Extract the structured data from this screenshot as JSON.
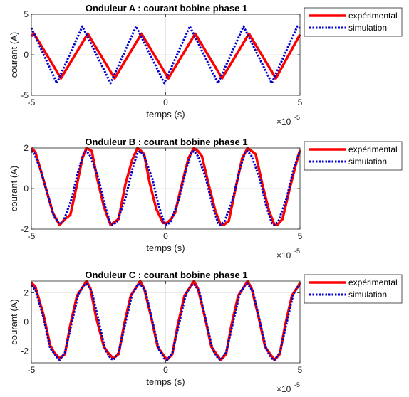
{
  "colors": {
    "experimental": "#ff0000",
    "simulation": "#0000cc",
    "grid": "#dedede",
    "axes": "#262626"
  },
  "chart_data": [
    {
      "type": "line",
      "title": "Onduleur A : courant bobine phase 1",
      "xlabel": "temps (s)",
      "ylabel": "courant (A)",
      "xlim": [
        -5,
        5
      ],
      "ylim": [
        -5,
        5
      ],
      "x_ticks": [
        "-5",
        "0",
        "5"
      ],
      "y_ticks": [
        "5",
        "0",
        "-5"
      ],
      "x_exponent_base": "×10",
      "x_exponent": "-5",
      "grid": true,
      "legend_position": "outside-right",
      "series": [
        {
          "name": "expérimental",
          "style": "solid",
          "x": [
            -5,
            -4.9,
            -3.9,
            -2.9,
            -1.9,
            -0.9,
            0.1,
            1.1,
            2.1,
            3.1,
            4.1,
            5
          ],
          "y": [
            2.3,
            2.6,
            -2.9,
            2.6,
            -2.9,
            2.6,
            -2.9,
            2.6,
            -2.9,
            2.6,
            -2.9,
            2.5
          ]
        },
        {
          "name": "simulation",
          "style": "dotted",
          "x": [
            -5,
            -4.05,
            -3.1,
            -2.05,
            -1.1,
            -0.05,
            0.9,
            1.95,
            2.9,
            3.95,
            4.9,
            5
          ],
          "y": [
            3.3,
            -3.5,
            3.5,
            -3.5,
            3.5,
            -3.5,
            3.5,
            -3.5,
            3.5,
            -3.5,
            3.5,
            3.3
          ]
        }
      ]
    },
    {
      "type": "line",
      "title": "Onduleur B : courant bobine phase 1",
      "xlabel": "temps (s)",
      "ylabel": "courant (A)",
      "xlim": [
        -5,
        5
      ],
      "ylim": [
        -2,
        2
      ],
      "x_ticks": [
        "-5",
        "0",
        "5"
      ],
      "y_ticks": [
        "2",
        "0",
        "-2"
      ],
      "x_exponent_base": "×10",
      "x_exponent": "-5",
      "grid": true,
      "legend_position": "outside-right",
      "series": [
        {
          "name": "expérimental",
          "style": "solid",
          "x": [
            -5,
            -4.85,
            -4.5,
            -4.2,
            -3.95,
            -3.75,
            -3.55,
            -3.3,
            -3.1,
            -2.95,
            -2.75,
            -2.55,
            -2.3,
            -2.05,
            -1.95,
            -1.75,
            -1.5,
            -1.25,
            -1.05,
            -0.95,
            -0.8,
            -0.6,
            -0.35,
            -0.1,
            0.05,
            0.2,
            0.35,
            0.6,
            0.85,
            1.05,
            1.2,
            1.35,
            1.6,
            1.85,
            2.05,
            2.15,
            2.35,
            2.6,
            2.85,
            3.05,
            3.15,
            3.35,
            3.6,
            3.85,
            4.05,
            4.15,
            4.35,
            4.6,
            4.85,
            5
          ],
          "y": [
            2.0,
            1.8,
            0.2,
            -1.2,
            -1.8,
            -1.5,
            -1.3,
            0.2,
            1.5,
            2.0,
            1.85,
            0.5,
            -0.9,
            -1.8,
            -1.7,
            -1.5,
            0.2,
            1.4,
            2.0,
            1.9,
            1.7,
            0.3,
            -1.0,
            -1.7,
            -1.7,
            -1.5,
            -1.2,
            0.2,
            1.5,
            2.0,
            1.85,
            1.6,
            0.2,
            -1.1,
            -1.8,
            -1.8,
            -1.6,
            0.0,
            1.5,
            2.0,
            1.9,
            1.7,
            0.2,
            -1.1,
            -1.8,
            -1.8,
            -1.5,
            -0.1,
            1.2,
            1.9
          ]
        },
        {
          "name": "simulation",
          "style": "dotted",
          "x": [
            -5,
            -4.9,
            -4.65,
            -4.35,
            -4.15,
            -3.95,
            -3.8,
            -3.5,
            -3.25,
            -3.05,
            -2.95,
            -2.8,
            -2.5,
            -2.25,
            -2.05,
            -1.95,
            -1.8,
            -1.5,
            -1.25,
            -1.05,
            -0.95,
            -0.8,
            -0.5,
            -0.25,
            -0.05,
            0.05,
            0.2,
            0.5,
            0.75,
            0.95,
            1.05,
            1.2,
            1.5,
            1.75,
            1.95,
            2.05,
            2.2,
            2.5,
            2.75,
            2.95,
            3.05,
            3.2,
            3.5,
            3.75,
            3.95,
            4.05,
            4.2,
            4.5,
            4.75,
            4.95,
            5
          ],
          "y": [
            1.85,
            1.75,
            0.9,
            -0.5,
            -1.4,
            -1.75,
            -1.6,
            -0.5,
            0.9,
            1.75,
            1.85,
            1.6,
            0.5,
            -0.9,
            -1.75,
            -1.8,
            -1.6,
            -0.5,
            0.9,
            1.75,
            1.85,
            1.6,
            0.5,
            -0.9,
            -1.7,
            -1.8,
            -1.6,
            -0.5,
            0.9,
            1.75,
            1.85,
            1.6,
            0.5,
            -0.9,
            -1.7,
            -1.8,
            -1.6,
            -0.5,
            0.9,
            1.75,
            1.85,
            1.6,
            0.5,
            -0.9,
            -1.7,
            -1.8,
            -1.6,
            -0.5,
            0.9,
            1.7,
            1.8
          ]
        }
      ]
    },
    {
      "type": "line",
      "title": "Onduleur C : courant bobine phase 1",
      "xlabel": "temps (s)",
      "ylabel": "courant (A)",
      "xlim": [
        -5,
        5
      ],
      "ylim": [
        -2.8,
        2.8
      ],
      "x_ticks": [
        "-5",
        "0",
        "5"
      ],
      "y_ticks": [
        "2",
        "0",
        "-2"
      ],
      "y_tick_values": [
        2,
        0,
        -2
      ],
      "x_exponent_base": "×10",
      "x_exponent": "-5",
      "grid": true,
      "legend_position": "outside-right",
      "series": [
        {
          "name": "expérimental",
          "style": "solid",
          "x": [
            -5,
            -4.85,
            -4.55,
            -4.3,
            -4.15,
            -3.95,
            -3.75,
            -3.55,
            -3.3,
            -3.05,
            -2.95,
            -2.8,
            -2.6,
            -2.3,
            -2.15,
            -1.95,
            -1.75,
            -1.55,
            -1.3,
            -1.05,
            -0.95,
            -0.8,
            -0.55,
            -0.3,
            -0.15,
            0.05,
            0.25,
            0.45,
            0.7,
            0.95,
            1.05,
            1.2,
            1.45,
            1.7,
            1.85,
            2.05,
            2.25,
            2.45,
            2.7,
            2.95,
            3.05,
            3.2,
            3.45,
            3.7,
            3.85,
            4.05,
            4.25,
            4.45,
            4.7,
            4.95,
            5
          ],
          "y": [
            2.7,
            2.4,
            0.5,
            -1.6,
            -2.1,
            -2.5,
            -2.2,
            -0.2,
            1.8,
            2.5,
            2.8,
            2.3,
            0.4,
            -1.7,
            -2.1,
            -2.5,
            -2.2,
            -0.2,
            1.8,
            2.5,
            2.8,
            2.3,
            0.4,
            -1.7,
            -2.1,
            -2.6,
            -2.2,
            -0.2,
            1.8,
            2.5,
            2.8,
            2.3,
            0.4,
            -1.7,
            -2.1,
            -2.6,
            -2.2,
            -0.2,
            1.8,
            2.5,
            2.8,
            2.3,
            0.4,
            -1.7,
            -2.1,
            -2.6,
            -2.2,
            -0.2,
            1.8,
            2.5,
            2.7
          ]
        },
        {
          "name": "simulation",
          "style": "dotted",
          "x": [
            -5,
            -4.85,
            -4.55,
            -4.3,
            -4.05,
            -3.95,
            -3.75,
            -3.5,
            -3.25,
            -3.05,
            -2.95,
            -2.75,
            -2.5,
            -2.25,
            -2.05,
            -1.95,
            -1.75,
            -1.5,
            -1.25,
            -1.05,
            -0.95,
            -0.75,
            -0.5,
            -0.25,
            -0.05,
            0.05,
            0.25,
            0.5,
            0.75,
            0.95,
            1.05,
            1.25,
            1.5,
            1.75,
            1.95,
            2.05,
            2.25,
            2.5,
            2.75,
            2.95,
            3.05,
            3.25,
            3.5,
            3.75,
            3.95,
            4.05,
            4.25,
            4.5,
            4.75,
            4.95,
            5
          ],
          "y": [
            2.5,
            2.2,
            0.3,
            -1.8,
            -2.4,
            -2.6,
            -2.1,
            -0.1,
            1.9,
            2.5,
            2.6,
            2.1,
            0.1,
            -1.9,
            -2.5,
            -2.6,
            -2.1,
            -0.1,
            1.9,
            2.5,
            2.6,
            2.1,
            0.1,
            -1.9,
            -2.5,
            -2.6,
            -2.1,
            -0.1,
            1.9,
            2.5,
            2.6,
            2.1,
            0.1,
            -1.9,
            -2.5,
            -2.6,
            -2.1,
            -0.1,
            1.9,
            2.5,
            2.6,
            2.1,
            0.1,
            -1.9,
            -2.5,
            -2.6,
            -2.1,
            -0.1,
            1.9,
            2.5,
            2.5
          ]
        }
      ]
    }
  ]
}
